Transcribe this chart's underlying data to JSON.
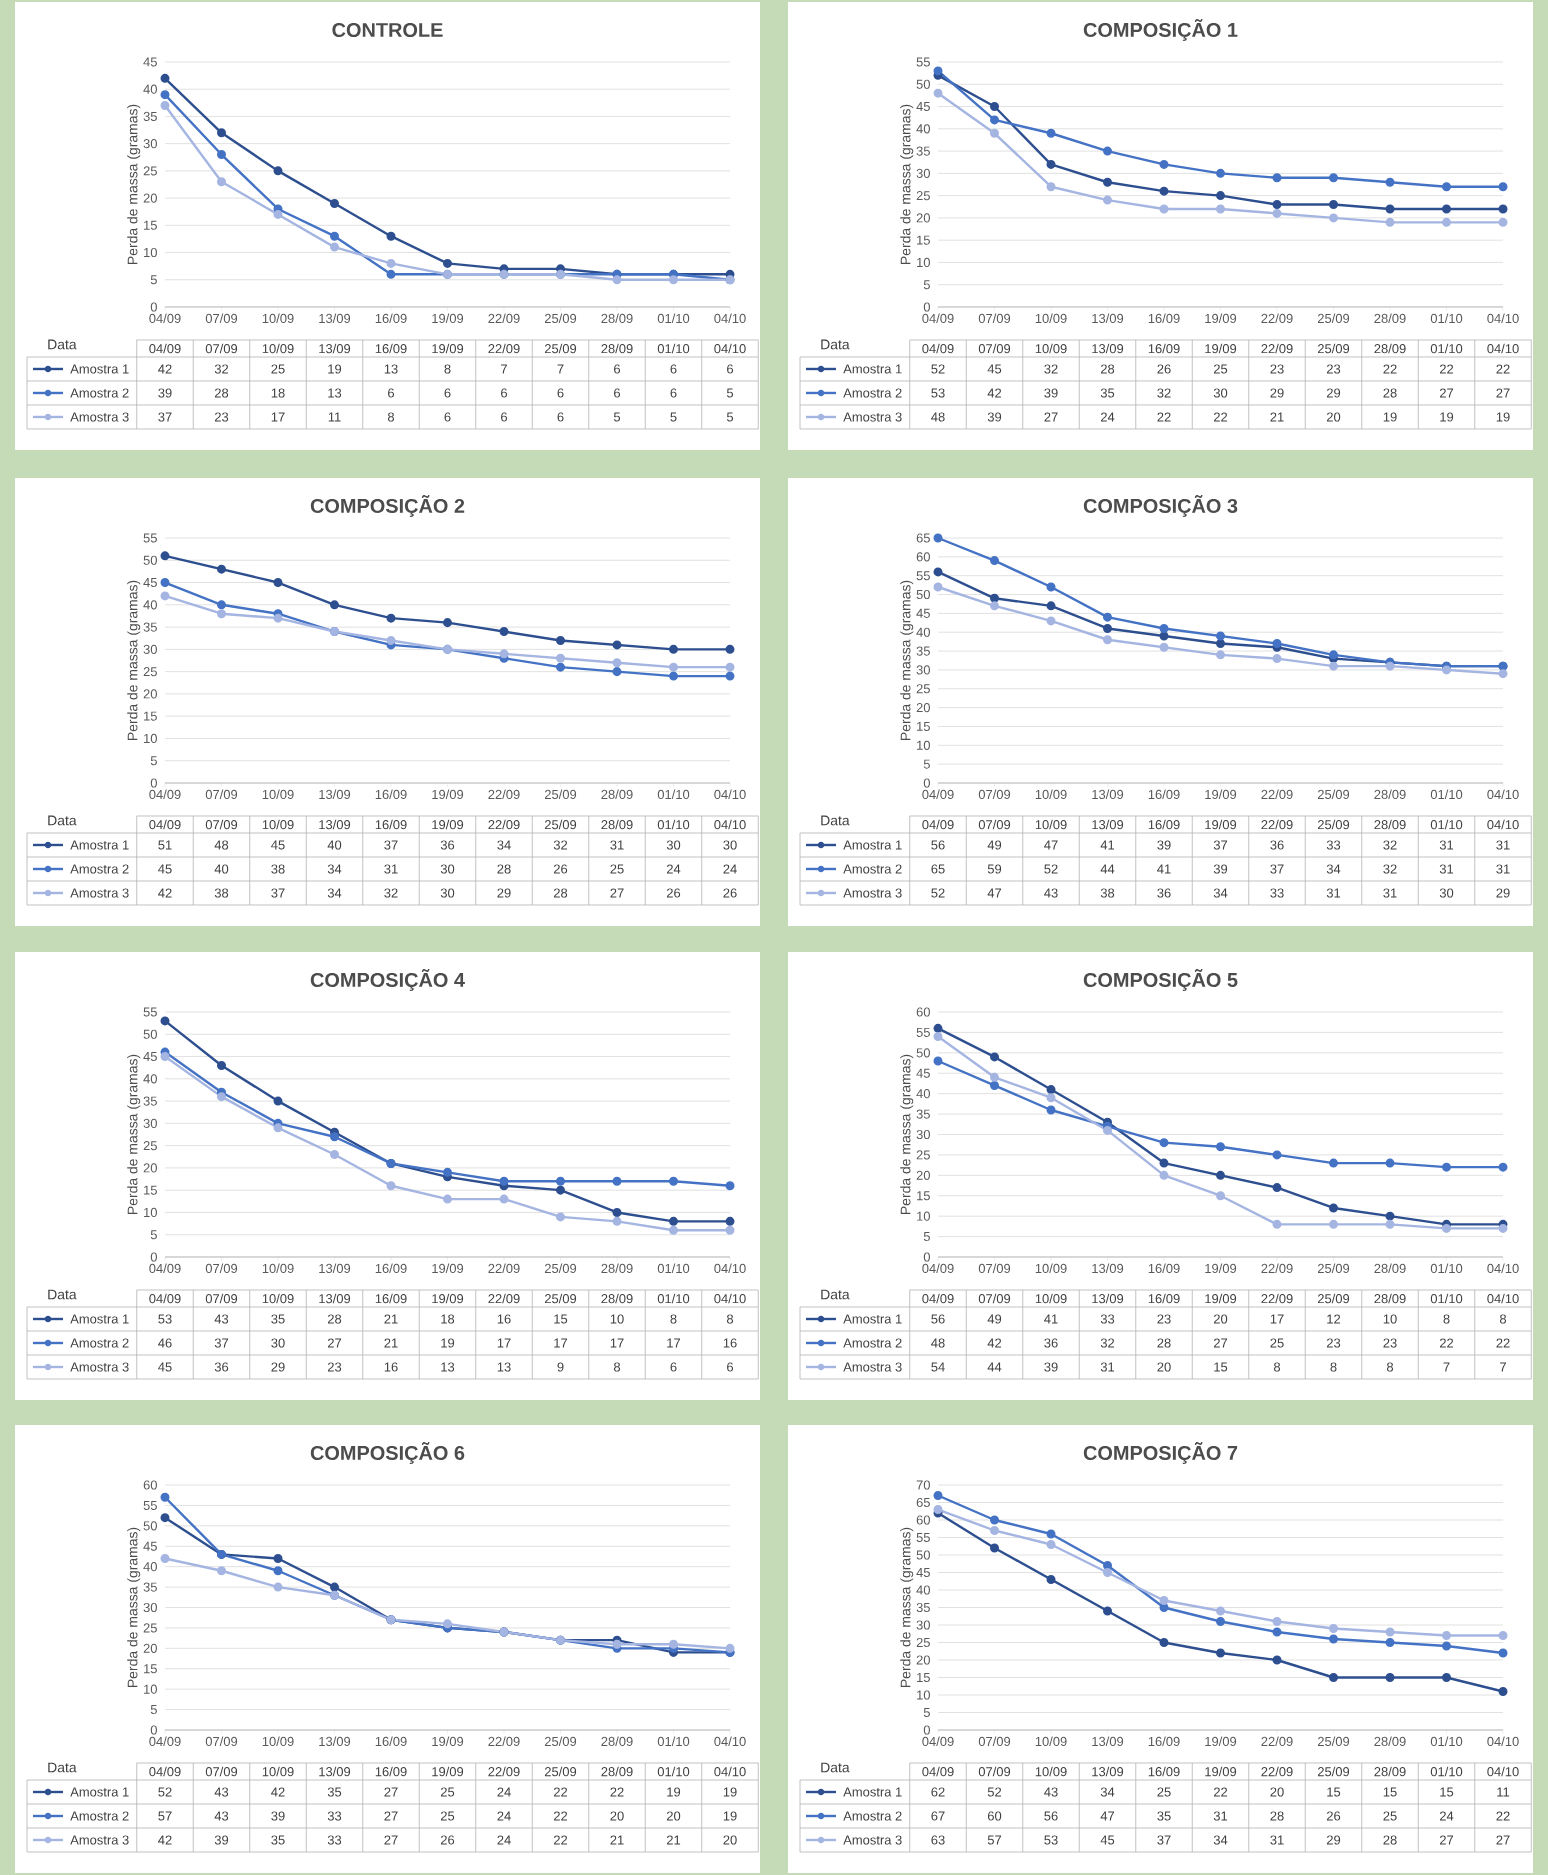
{
  "chart_data": [
    {
      "type": "line",
      "title": "CONTROLE",
      "ylabel": "Perda de massa (gramas)",
      "annotations": [
        "Data"
      ],
      "categories": [
        "04/09",
        "07/09",
        "10/09",
        "13/09",
        "16/09",
        "19/09",
        "22/09",
        "25/09",
        "28/09",
        "01/10",
        "04/10"
      ],
      "ylim": [
        0,
        45
      ],
      "yticks": [
        0,
        5,
        10,
        15,
        20,
        25,
        30,
        35,
        40,
        45
      ],
      "grid": "y",
      "legend": "bottom",
      "marker": "circle",
      "data_labels": true,
      "series": [
        {
          "name": "Amostra 1",
          "color": "#2e4f8f",
          "values": [
            42,
            32,
            25,
            19,
            13,
            8,
            7,
            7,
            6,
            6,
            6
          ]
        },
        {
          "name": "Amostra 2",
          "color": "#4472c4",
          "values": [
            39,
            28,
            18,
            13,
            6,
            6,
            6,
            6,
            6,
            6,
            5
          ]
        },
        {
          "name": "Amostra 3",
          "color": "#a5b5e2",
          "values": [
            37,
            23,
            17,
            11,
            8,
            6,
            6,
            6,
            5,
            5,
            5
          ]
        }
      ]
    },
    {
      "type": "line",
      "title": "COMPOSIÇÃO 1",
      "ylabel": "Perda de massa (gramas)",
      "annotations": [
        "Data"
      ],
      "categories": [
        "04/09",
        "07/09",
        "10/09",
        "13/09",
        "16/09",
        "19/09",
        "22/09",
        "25/09",
        "28/09",
        "01/10",
        "04/10"
      ],
      "ylim": [
        0,
        55
      ],
      "yticks": [
        0,
        5,
        10,
        15,
        20,
        25,
        30,
        35,
        40,
        45,
        50,
        55
      ],
      "grid": "y",
      "legend": "bottom",
      "marker": "circle",
      "data_labels": true,
      "series": [
        {
          "name": "Amostra 1",
          "color": "#2e4f8f",
          "values": [
            52,
            45,
            32,
            28,
            26,
            25,
            23,
            23,
            22,
            22,
            22
          ]
        },
        {
          "name": "Amostra 2",
          "color": "#4472c4",
          "values": [
            53,
            42,
            39,
            35,
            32,
            30,
            29,
            29,
            28,
            27,
            27
          ]
        },
        {
          "name": "Amostra 3",
          "color": "#a5b5e2",
          "values": [
            48,
            39,
            27,
            24,
            22,
            22,
            21,
            20,
            19,
            19,
            19
          ]
        }
      ]
    },
    {
      "type": "line",
      "title": "COMPOSIÇÃO 2",
      "ylabel": "Perda de massa (gramas)",
      "annotations": [
        "Data"
      ],
      "categories": [
        "04/09",
        "07/09",
        "10/09",
        "13/09",
        "16/09",
        "19/09",
        "22/09",
        "25/09",
        "28/09",
        "01/10",
        "04/10"
      ],
      "ylim": [
        0,
        55
      ],
      "yticks": [
        0,
        5,
        10,
        15,
        20,
        25,
        30,
        35,
        40,
        45,
        50,
        55
      ],
      "grid": "y",
      "legend": "bottom",
      "marker": "circle",
      "data_labels": true,
      "series": [
        {
          "name": "Amostra 1",
          "color": "#2e4f8f",
          "values": [
            51,
            48,
            45,
            40,
            37,
            36,
            34,
            32,
            31,
            30,
            30
          ]
        },
        {
          "name": "Amostra 2",
          "color": "#4472c4",
          "values": [
            45,
            40,
            38,
            34,
            31,
            30,
            28,
            26,
            25,
            24,
            24
          ]
        },
        {
          "name": "Amostra 3",
          "color": "#a5b5e2",
          "values": [
            42,
            38,
            37,
            34,
            32,
            30,
            29,
            28,
            27,
            26,
            26
          ]
        }
      ]
    },
    {
      "type": "line",
      "title": "COMPOSIÇÃO 3",
      "ylabel": "Perda de massa (gramas)",
      "annotations": [
        "Data"
      ],
      "categories": [
        "04/09",
        "07/09",
        "10/09",
        "13/09",
        "16/09",
        "19/09",
        "22/09",
        "25/09",
        "28/09",
        "01/10",
        "04/10"
      ],
      "ylim": [
        0,
        65
      ],
      "yticks": [
        0,
        5,
        10,
        15,
        20,
        25,
        30,
        35,
        40,
        45,
        50,
        55,
        60,
        65
      ],
      "grid": "y",
      "legend": "bottom",
      "marker": "circle",
      "data_labels": true,
      "series": [
        {
          "name": "Amostra 1",
          "color": "#2e4f8f",
          "values": [
            56,
            49,
            47,
            41,
            39,
            37,
            36,
            33,
            32,
            31,
            31
          ]
        },
        {
          "name": "Amostra 2",
          "color": "#4472c4",
          "values": [
            65,
            59,
            52,
            44,
            41,
            39,
            37,
            34,
            32,
            31,
            31
          ]
        },
        {
          "name": "Amostra 3",
          "color": "#a5b5e2",
          "values": [
            52,
            47,
            43,
            38,
            36,
            34,
            33,
            31,
            31,
            30,
            29
          ]
        }
      ]
    },
    {
      "type": "line",
      "title": "COMPOSIÇÃO 4",
      "ylabel": "Perda de massa (gramas)",
      "annotations": [
        "Data"
      ],
      "categories": [
        "04/09",
        "07/09",
        "10/09",
        "13/09",
        "16/09",
        "19/09",
        "22/09",
        "25/09",
        "28/09",
        "01/10",
        "04/10"
      ],
      "ylim": [
        0,
        55
      ],
      "yticks": [
        0,
        5,
        10,
        15,
        20,
        25,
        30,
        35,
        40,
        45,
        50,
        55
      ],
      "grid": "y",
      "legend": "bottom",
      "marker": "circle",
      "data_labels": true,
      "series": [
        {
          "name": "Amostra 1",
          "color": "#2e4f8f",
          "values": [
            53,
            43,
            35,
            28,
            21,
            18,
            16,
            15,
            10,
            8,
            8
          ]
        },
        {
          "name": "Amostra 2",
          "color": "#4472c4",
          "values": [
            46,
            37,
            30,
            27,
            21,
            19,
            17,
            17,
            17,
            17,
            16
          ]
        },
        {
          "name": "Amostra 3",
          "color": "#a5b5e2",
          "values": [
            45,
            36,
            29,
            23,
            16,
            13,
            13,
            9,
            8,
            6,
            6
          ]
        }
      ]
    },
    {
      "type": "line",
      "title": "COMPOSIÇÃO 5",
      "ylabel": "Perda de massa (gramas)",
      "annotations": [
        "Data"
      ],
      "categories": [
        "04/09",
        "07/09",
        "10/09",
        "13/09",
        "16/09",
        "19/09",
        "22/09",
        "25/09",
        "28/09",
        "01/10",
        "04/10"
      ],
      "ylim": [
        0,
        60
      ],
      "yticks": [
        0,
        5,
        10,
        15,
        20,
        25,
        30,
        35,
        40,
        45,
        50,
        55,
        60
      ],
      "grid": "y",
      "legend": "bottom",
      "marker": "circle",
      "data_labels": true,
      "series": [
        {
          "name": "Amostra 1",
          "color": "#2e4f8f",
          "values": [
            56,
            49,
            41,
            33,
            23,
            20,
            17,
            12,
            10,
            8,
            8
          ]
        },
        {
          "name": "Amostra 2",
          "color": "#4472c4",
          "values": [
            48,
            42,
            36,
            32,
            28,
            27,
            25,
            23,
            23,
            22,
            22
          ]
        },
        {
          "name": "Amostra 3",
          "color": "#a5b5e2",
          "values": [
            54,
            44,
            39,
            31,
            20,
            15,
            8,
            8,
            8,
            7,
            7
          ]
        }
      ]
    },
    {
      "type": "line",
      "title": "COMPOSIÇÃO 6",
      "ylabel": "Perda de massa (gramas)",
      "annotations": [
        "Data"
      ],
      "categories": [
        "04/09",
        "07/09",
        "10/09",
        "13/09",
        "16/09",
        "19/09",
        "22/09",
        "25/09",
        "28/09",
        "01/10",
        "04/10"
      ],
      "ylim": [
        0,
        60
      ],
      "yticks": [
        0,
        5,
        10,
        15,
        20,
        25,
        30,
        35,
        40,
        45,
        50,
        55,
        60
      ],
      "grid": "y",
      "legend": "bottom",
      "marker": "circle",
      "data_labels": true,
      "series": [
        {
          "name": "Amostra 1",
          "color": "#2e4f8f",
          "values": [
            52,
            43,
            42,
            35,
            27,
            25,
            24,
            22,
            22,
            19,
            19
          ]
        },
        {
          "name": "Amostra 2",
          "color": "#4472c4",
          "values": [
            57,
            43,
            39,
            33,
            27,
            25,
            24,
            22,
            20,
            20,
            19
          ]
        },
        {
          "name": "Amostra 3",
          "color": "#a5b5e2",
          "values": [
            42,
            39,
            35,
            33,
            27,
            26,
            24,
            22,
            21,
            21,
            20
          ]
        }
      ]
    },
    {
      "type": "line",
      "title": "COMPOSIÇÃO 7",
      "ylabel": "Perda de massa (gramas)",
      "annotations": [
        "Data"
      ],
      "categories": [
        "04/09",
        "07/09",
        "10/09",
        "13/09",
        "16/09",
        "19/09",
        "22/09",
        "25/09",
        "28/09",
        "01/10",
        "04/10"
      ],
      "ylim": [
        0,
        70
      ],
      "yticks": [
        0,
        5,
        10,
        15,
        20,
        25,
        30,
        35,
        40,
        45,
        50,
        55,
        60,
        65,
        70
      ],
      "grid": "y",
      "legend": "bottom",
      "marker": "circle",
      "data_labels": true,
      "series": [
        {
          "name": "Amostra 1",
          "color": "#2e4f8f",
          "values": [
            62,
            52,
            43,
            34,
            25,
            22,
            20,
            15,
            15,
            15,
            11
          ]
        },
        {
          "name": "Amostra 2",
          "color": "#4472c4",
          "values": [
            67,
            60,
            56,
            47,
            35,
            31,
            28,
            26,
            25,
            24,
            22
          ]
        },
        {
          "name": "Amostra 3",
          "color": "#a5b5e2",
          "values": [
            63,
            57,
            53,
            45,
            37,
            34,
            31,
            29,
            28,
            27,
            27
          ]
        }
      ]
    }
  ]
}
